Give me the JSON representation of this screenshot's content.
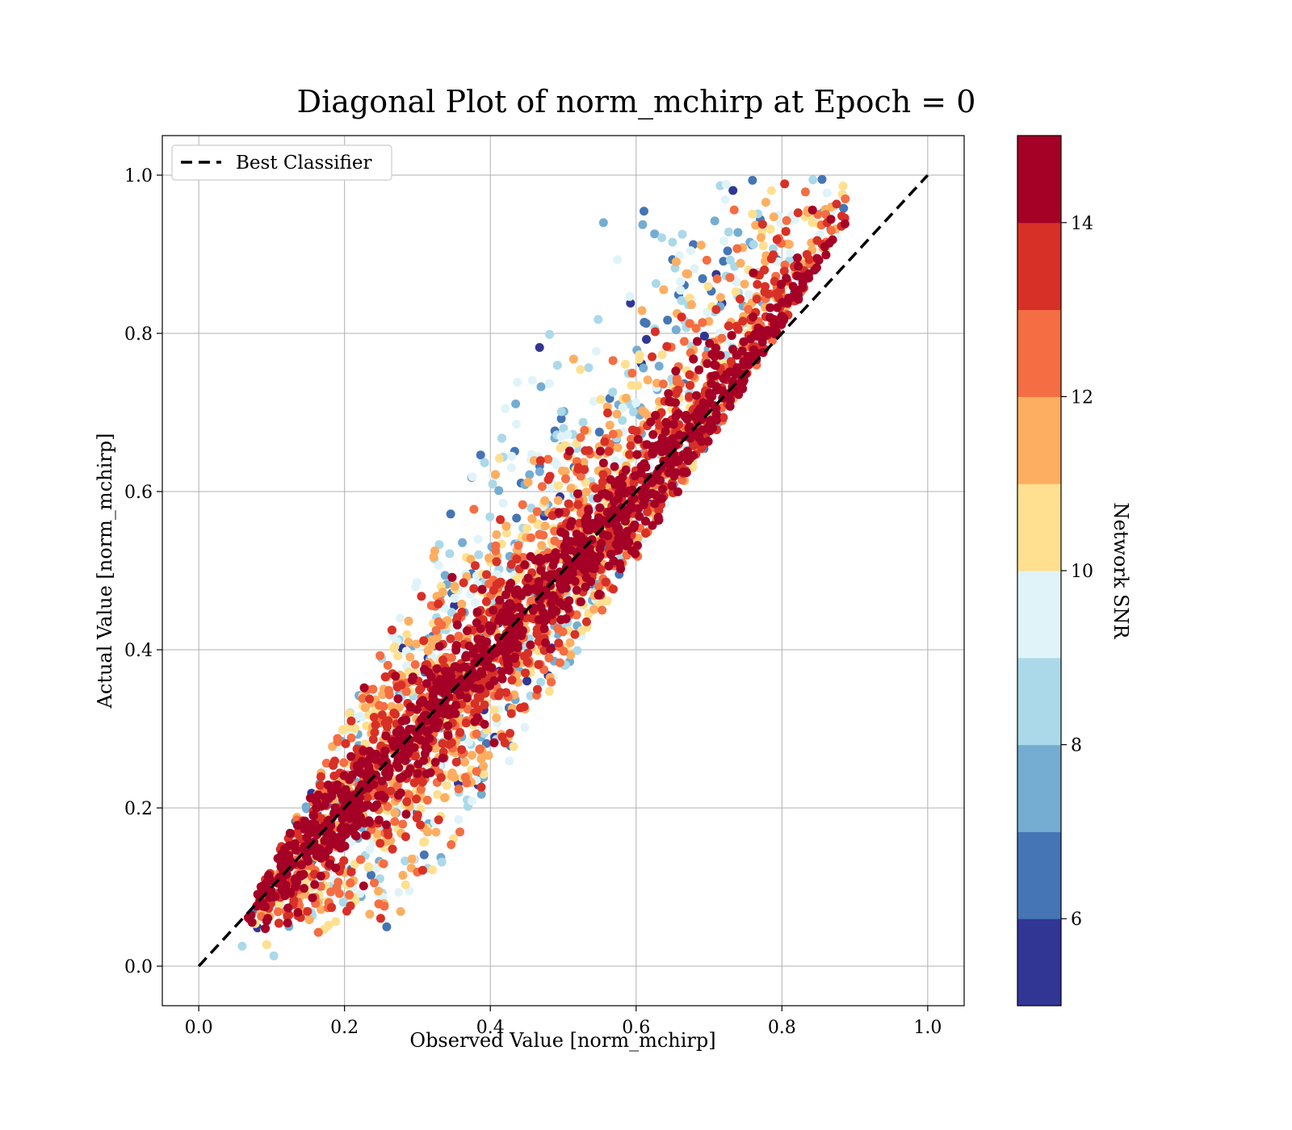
{
  "chart_data": {
    "type": "scatter",
    "title": "Diagonal Plot of norm_mchirp at Epoch = 0",
    "xlabel": "Observed Value [norm_mchirp]",
    "ylabel": "Actual Value [norm_mchirp]",
    "xlim": [
      -0.05,
      1.05
    ],
    "ylim": [
      -0.05,
      1.05
    ],
    "xticks": [
      "0.0",
      "0.2",
      "0.4",
      "0.6",
      "0.8",
      "1.0"
    ],
    "yticks": [
      "0.0",
      "0.2",
      "0.4",
      "0.6",
      "0.8",
      "1.0"
    ],
    "grid": true,
    "legend": {
      "placement": "top-left",
      "entries": [
        "Best Classifier"
      ]
    },
    "reference_line": {
      "name": "Best Classifier",
      "x": [
        0.0,
        1.0
      ],
      "y": [
        0.0,
        1.0
      ],
      "style": "dashed",
      "color": "#000000"
    },
    "colorbar": {
      "label": "Network SNR",
      "range": [
        5,
        15
      ],
      "ticks": [
        "6",
        "8",
        "10",
        "12",
        "14"
      ],
      "colors": [
        "#313695",
        "#4575b4",
        "#74add1",
        "#abd9e9",
        "#e0f3f8",
        "#fee090",
        "#fdae61",
        "#f46d43",
        "#d73027",
        "#a50026"
      ]
    },
    "scatter_description": {
      "points_shown": "dense cloud along diagonal",
      "x_range": [
        0.05,
        0.85
      ],
      "y_range": [
        0.0,
        1.0
      ],
      "high_snr_band_halfwidth": 0.12,
      "low_snr_spread": 0.35
    }
  }
}
